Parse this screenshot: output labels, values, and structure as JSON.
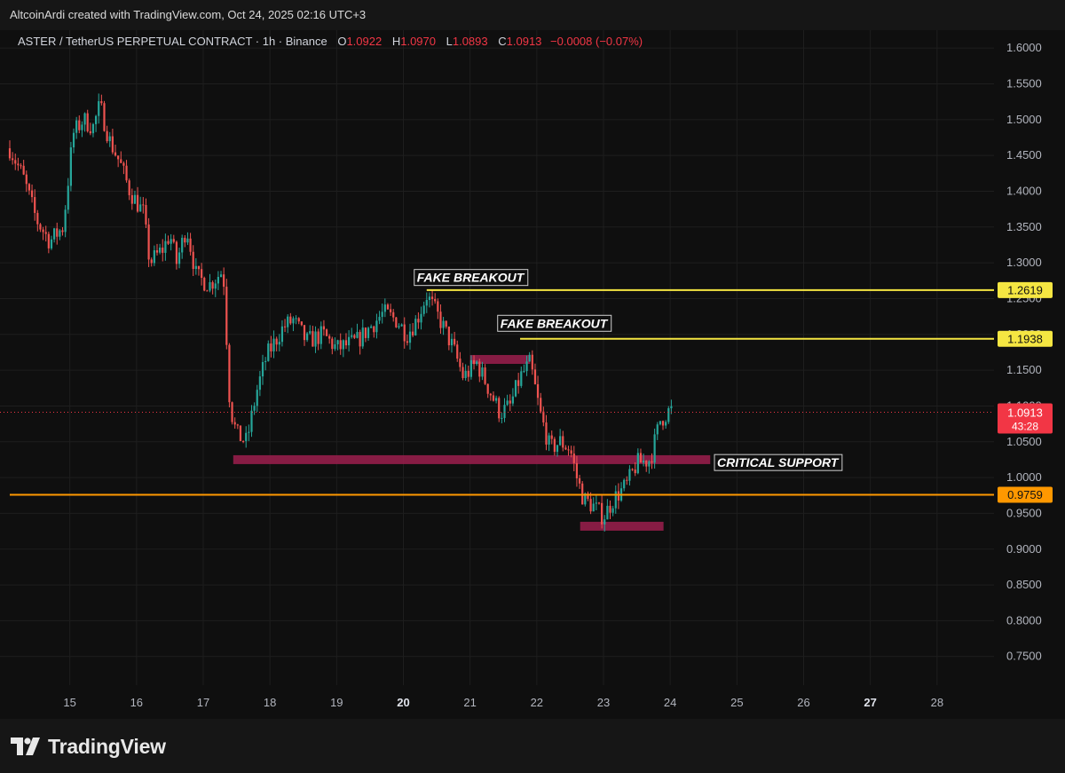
{
  "header": {
    "attribution": "AltcoinArdi created with TradingView.com, Oct 24, 2025 02:16 UTC+3"
  },
  "legend": {
    "symbol": "ASTER / TetherUS PERPETUAL CONTRACT · 1h · Binance",
    "open_label": "O",
    "open": "1.0922",
    "high_label": "H",
    "high": "1.0970",
    "low_label": "L",
    "low": "1.0893",
    "close_label": "C",
    "close": "1.0913",
    "change": "−0.0008 (−0.07%)"
  },
  "footer": {
    "logo_text": "TradingView"
  },
  "colors": {
    "background": "#0f0f0f",
    "up": "#26a69a",
    "down": "#ef5350",
    "resistance": "#f5e642",
    "support": "#ff9800",
    "zone": "#9c1f4e",
    "last_price": "#f23645"
  },
  "chart_data": {
    "type": "candlestick",
    "title": "ASTER / TetherUS PERPETUAL CONTRACT · 1h · Binance",
    "x_ticks": [
      "15",
      "16",
      "17",
      "18",
      "19",
      "20",
      "21",
      "22",
      "23",
      "24",
      "25",
      "26",
      "27",
      "28"
    ],
    "x_bold_ticks": [
      "20",
      "27"
    ],
    "x_range_days": [
      14.1,
      29.0
    ],
    "y_ticks": [
      "1.6000",
      "1.5500",
      "1.5000",
      "1.4500",
      "1.4000",
      "1.3500",
      "1.3000",
      "1.2500",
      "1.2000",
      "1.1500",
      "1.1000",
      "1.0500",
      "1.0000",
      "0.9500",
      "0.9000",
      "0.8500",
      "0.8000",
      "0.7500"
    ],
    "ylim": [
      0.71,
      1.625
    ],
    "grid": true,
    "price_path": [
      [
        14.1,
        1.46
      ],
      [
        14.3,
        1.42
      ],
      [
        14.5,
        1.36
      ],
      [
        14.7,
        1.33
      ],
      [
        14.9,
        1.35
      ],
      [
        15.05,
        1.48
      ],
      [
        15.2,
        1.5
      ],
      [
        15.35,
        1.49
      ],
      [
        15.45,
        1.52
      ],
      [
        15.6,
        1.47
      ],
      [
        15.75,
        1.44
      ],
      [
        15.9,
        1.4
      ],
      [
        16.1,
        1.37
      ],
      [
        16.2,
        1.3
      ],
      [
        16.4,
        1.32
      ],
      [
        16.5,
        1.34
      ],
      [
        16.6,
        1.3
      ],
      [
        16.75,
        1.35
      ],
      [
        16.9,
        1.28
      ],
      [
        17.1,
        1.27
      ],
      [
        17.3,
        1.29
      ],
      [
        17.4,
        1.1
      ],
      [
        17.5,
        1.06
      ],
      [
        17.65,
        1.05
      ],
      [
        17.8,
        1.12
      ],
      [
        17.95,
        1.17
      ],
      [
        18.2,
        1.21
      ],
      [
        18.35,
        1.22
      ],
      [
        18.55,
        1.19
      ],
      [
        18.8,
        1.2
      ],
      [
        19.0,
        1.18
      ],
      [
        19.3,
        1.19
      ],
      [
        19.5,
        1.21
      ],
      [
        19.7,
        1.23
      ],
      [
        19.9,
        1.22
      ],
      [
        20.05,
        1.2
      ],
      [
        20.2,
        1.22
      ],
      [
        20.35,
        1.255
      ],
      [
        20.55,
        1.22
      ],
      [
        20.75,
        1.18
      ],
      [
        20.9,
        1.14
      ],
      [
        21.1,
        1.16
      ],
      [
        21.3,
        1.12
      ],
      [
        21.45,
        1.09
      ],
      [
        21.6,
        1.1
      ],
      [
        21.75,
        1.14
      ],
      [
        21.9,
        1.16
      ],
      [
        22.05,
        1.09
      ],
      [
        22.2,
        1.04
      ],
      [
        22.35,
        1.05
      ],
      [
        22.5,
        1.04
      ],
      [
        22.6,
        1.0
      ],
      [
        22.7,
        0.97
      ],
      [
        22.85,
        0.96
      ],
      [
        23.0,
        0.945
      ],
      [
        23.15,
        0.97
      ],
      [
        23.35,
        0.99
      ],
      [
        23.5,
        1.02
      ],
      [
        23.7,
        1.025
      ],
      [
        23.85,
        1.08
      ],
      [
        24.0,
        1.095
      ],
      [
        24.05,
        1.0913
      ]
    ],
    "last_price": {
      "value": "1.0913",
      "countdown": "43:28"
    },
    "levels": [
      {
        "name": "resistance-1",
        "value": "1.2619",
        "from_day": 20.35,
        "color": "resistance"
      },
      {
        "name": "resistance-2",
        "value": "1.1938",
        "from_day": 21.75,
        "color": "resistance"
      },
      {
        "name": "support-line",
        "value": "0.9759",
        "from_day": 14.1,
        "color": "support"
      }
    ],
    "zones": [
      {
        "name": "critical-support-zone",
        "from_day": 17.45,
        "to_day": 24.6,
        "value": 1.025
      },
      {
        "name": "mid-zone",
        "from_day": 21.0,
        "to_day": 21.9,
        "value": 1.165
      },
      {
        "name": "low-zone",
        "from_day": 22.65,
        "to_day": 23.9,
        "value": 0.932
      }
    ],
    "annotations": [
      {
        "text": "FAKE BREAKOUT",
        "day": 20.15,
        "value": 1.2795
      },
      {
        "text": "FAKE BREAKOUT",
        "day": 21.4,
        "value": 1.2155
      },
      {
        "text": "CRITICAL SUPPORT",
        "day": 24.65,
        "value": 1.021
      }
    ]
  }
}
